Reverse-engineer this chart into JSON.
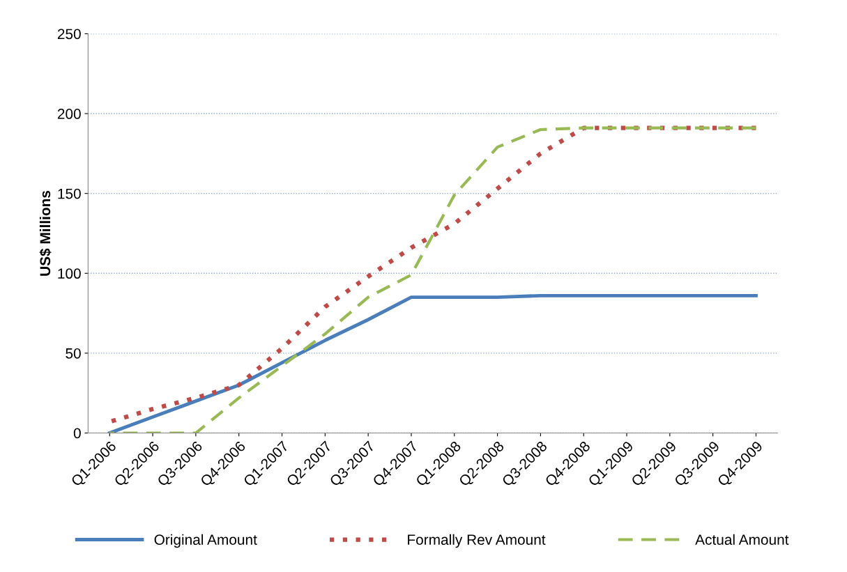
{
  "chart_data": {
    "type": "line",
    "ylabel": "US$ Millions",
    "categories": [
      "Q1-2006",
      "Q2-2006",
      "Q3-2006",
      "Q4-2006",
      "Q1-2007",
      "Q2-2007",
      "Q3-2007",
      "Q4-2007",
      "Q1-2008",
      "Q2-2008",
      "Q3-2008",
      "Q4-2008",
      "Q1-2009",
      "Q2-2009",
      "Q3-2009",
      "Q4-2009"
    ],
    "series": [
      {
        "name": "Original Amount",
        "color": "#4a7ebb",
        "line_style": "solid",
        "values": [
          0,
          10,
          20,
          30,
          44,
          58,
          71,
          85,
          85,
          85,
          86,
          86,
          86,
          86,
          86,
          86
        ]
      },
      {
        "name": "Formally Rev Amount",
        "color": "#be4b48",
        "line_style": "dotted",
        "values": [
          7,
          15,
          22,
          30,
          53,
          79,
          98,
          116,
          131,
          153,
          175,
          191,
          191,
          191,
          191,
          191
        ]
      },
      {
        "name": "Actual Amount",
        "color": "#98b954",
        "line_style": "dashed",
        "values": [
          0,
          0,
          0,
          22,
          42,
          62,
          85,
          99,
          149,
          179,
          190,
          191,
          191,
          191,
          191,
          191
        ]
      }
    ],
    "ylim": [
      0,
      250
    ],
    "yticks": [
      0,
      50,
      100,
      150,
      200,
      250
    ],
    "grid": "y",
    "legend": "bottom",
    "marker": "none"
  }
}
